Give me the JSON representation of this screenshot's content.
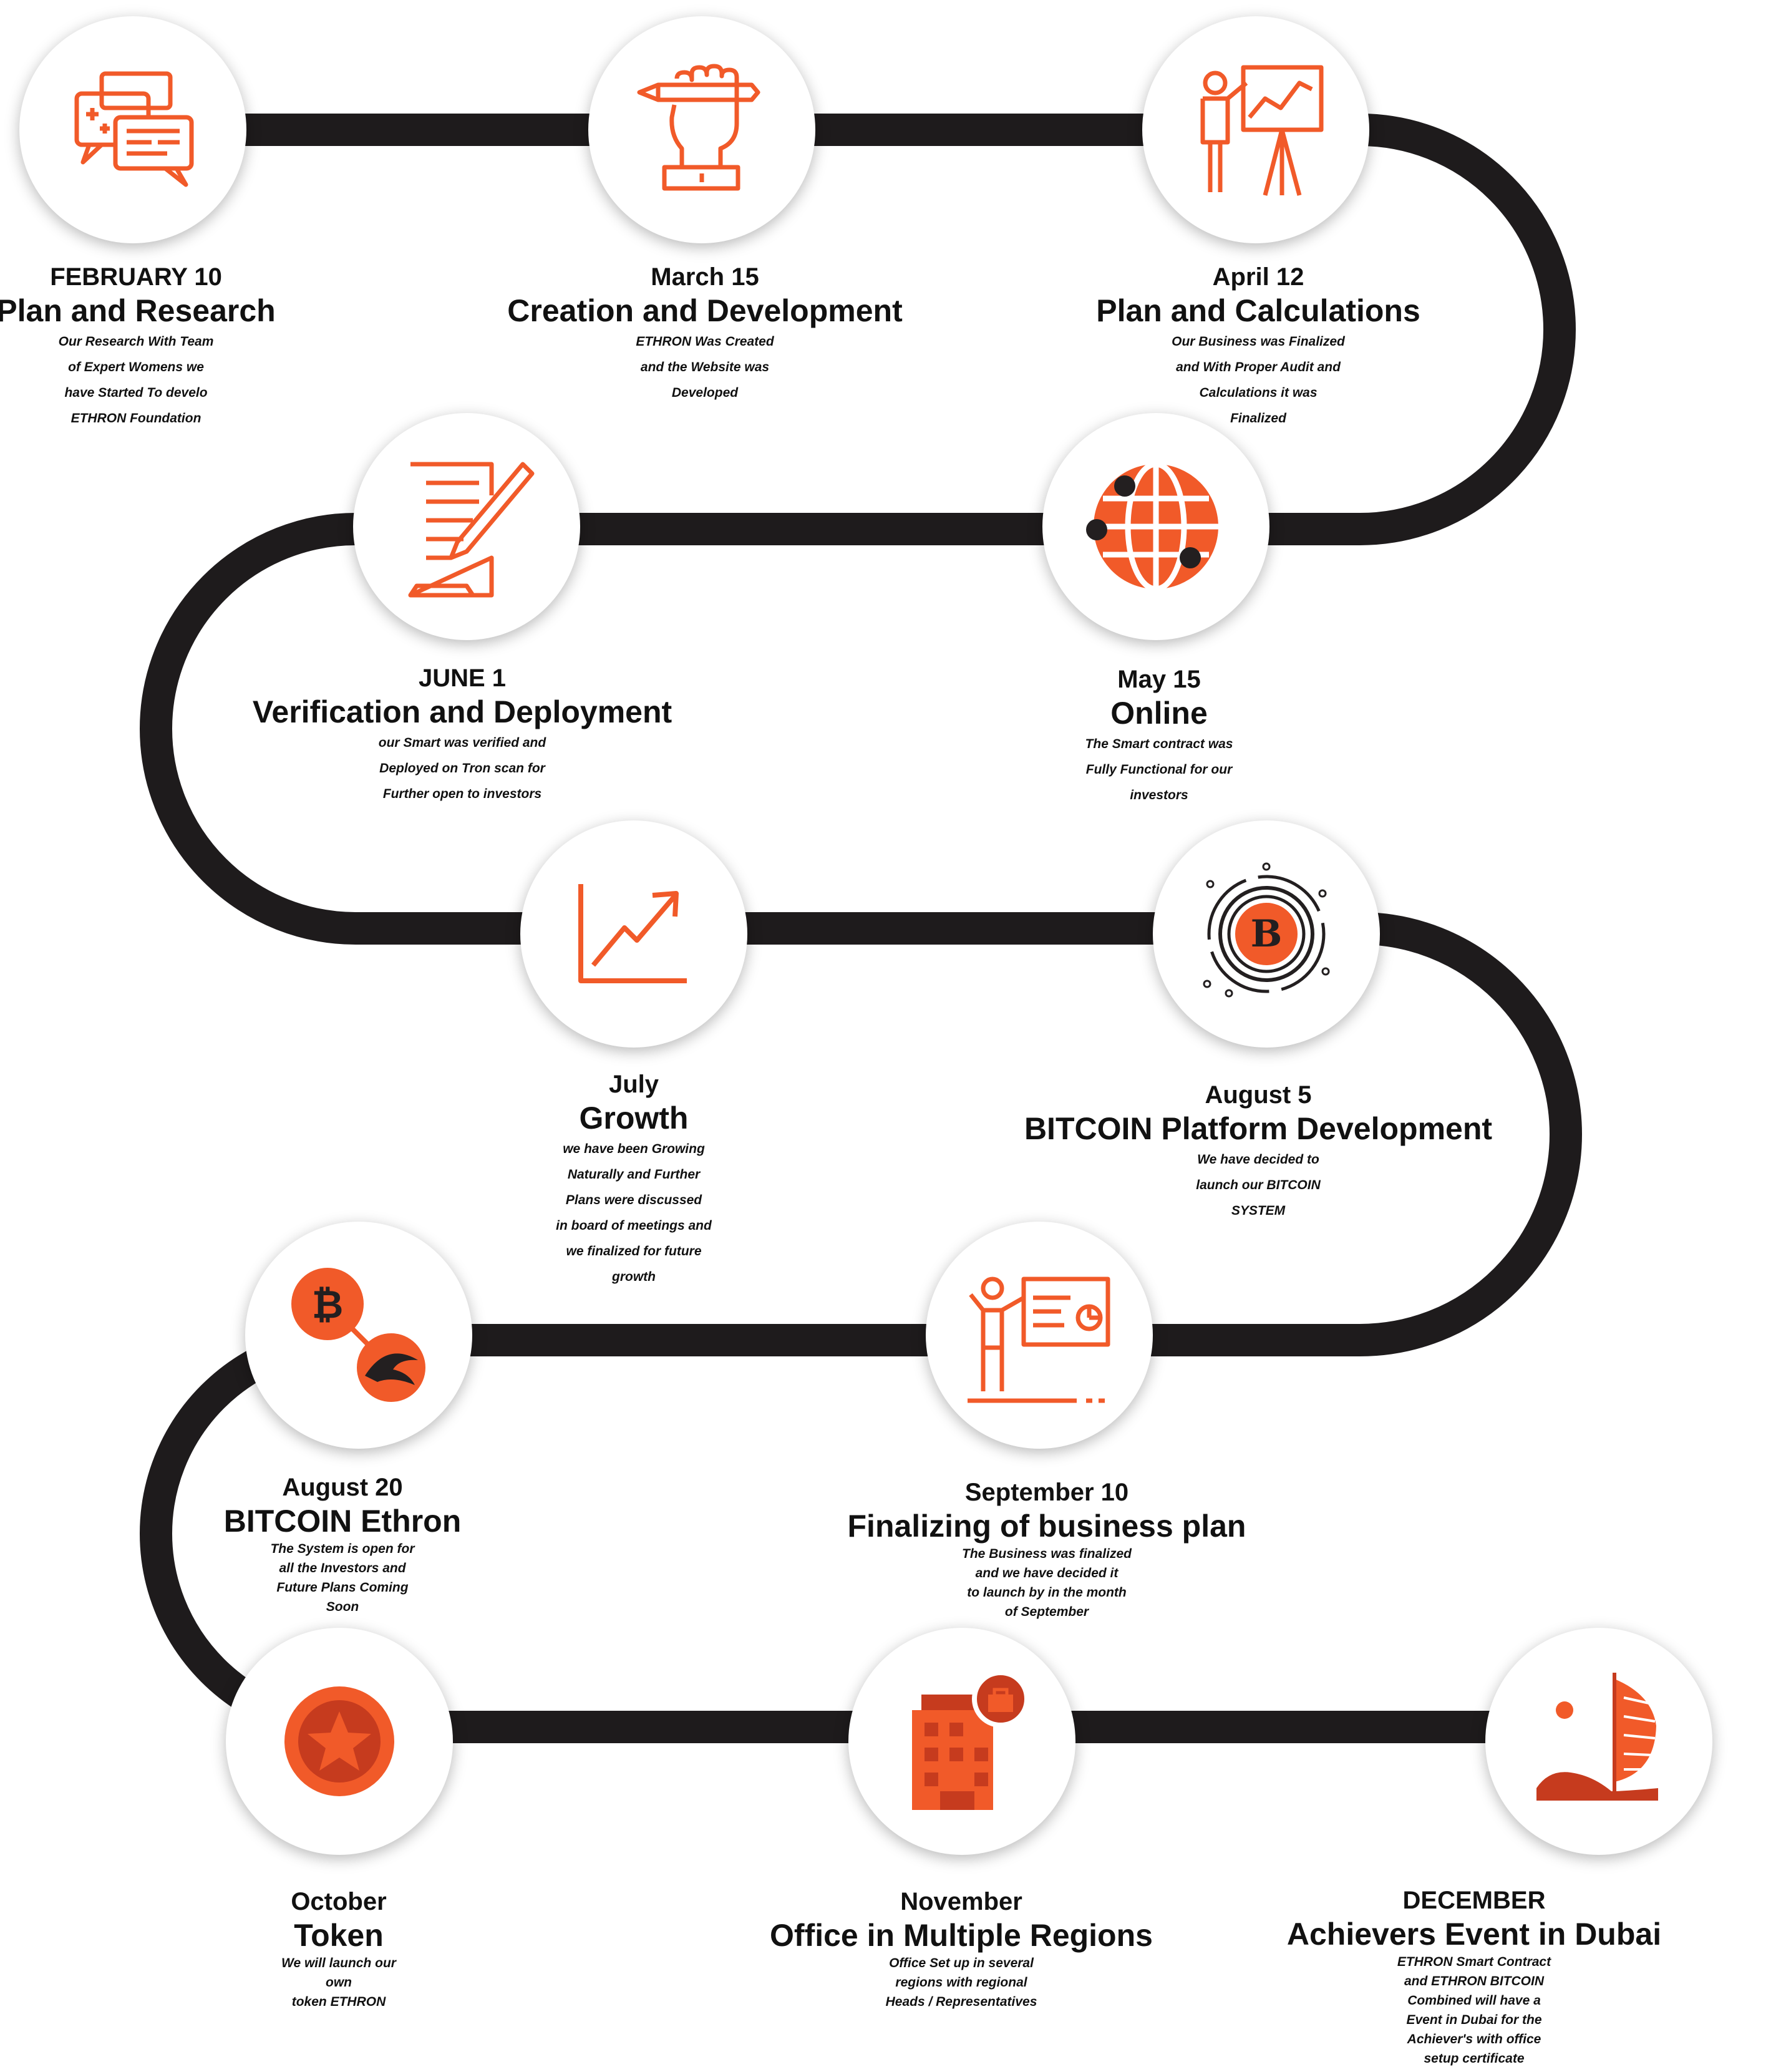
{
  "palette": {
    "accent": "#F15A29",
    "dark": "#231F20",
    "road": "#1E1B1C",
    "white": "#FFFFFF"
  },
  "milestones": [
    {
      "date": "FEBRUARY 10",
      "title": "Plan and Research",
      "icon": "chat-bubbles-icon",
      "desc": [
        "Our Research With Team",
        "of Expert Womens we",
        "have Started To develo",
        "ETHRON Foundation"
      ]
    },
    {
      "date": "March 15",
      "title": "Creation and Development",
      "icon": "hand-holding-pencil-icon",
      "desc": [
        "ETHRON Was Created",
        "and the Website was",
        "Developed"
      ]
    },
    {
      "date": "April 12",
      "title": "Plan and Calculations",
      "icon": "presentation-easel-icon",
      "desc": [
        "Our Business was Finalized",
        "and With Proper Audit and",
        "Calculations it was",
        "Finalized"
      ]
    },
    {
      "date": "JUNE 1",
      "title": "Verification and Deployment",
      "icon": "document-pencil-icon",
      "desc": [
        "our Smart was verified and",
        "Deployed on Tron scan for",
        "Further open to investors"
      ]
    },
    {
      "date": "May 15",
      "title": "Online",
      "icon": "globe-network-icon",
      "desc": [
        "The Smart contract was",
        "Fully Functional for our",
        "investors"
      ]
    },
    {
      "date": "July",
      "title": "Growth",
      "icon": "growth-chart-icon",
      "desc": [
        "we have been Growing",
        "Naturally and Further",
        "Plans were discussed",
        "in board of meetings and",
        "we finalized for future",
        "growth"
      ]
    },
    {
      "date": "August 5",
      "title": "BITCOIN Platform Development",
      "icon": "bitcoin-orbit-icon",
      "desc": [
        "We have decided to",
        "launch our BITCOIN",
        "SYSTEM"
      ]
    },
    {
      "date": "August 20",
      "title": "BITCOIN Ethron",
      "icon": "bitcoin-ethron-link-icon",
      "desc": [
        "The System is open for",
        "all the Investors and",
        "Future Plans Coming",
        "Soon"
      ]
    },
    {
      "date": "September 10",
      "title": "Finalizing of business plan",
      "icon": "presenter-board-icon",
      "desc": [
        "The Business was finalized",
        "and we have decided it",
        "to launch by in the month",
        "of September"
      ]
    },
    {
      "date": "October",
      "title": "Token",
      "icon": "star-token-icon",
      "desc": [
        "We will launch our",
        "own",
        "token ETHRON"
      ]
    },
    {
      "date": "November",
      "title": "Office in Multiple Regions",
      "icon": "office-building-icon",
      "desc": [
        "Office Set up in several",
        "regions with regional",
        "Heads / Representatives"
      ]
    },
    {
      "date": "DECEMBER",
      "title": "Achievers Event in Dubai",
      "icon": "dubai-burj-al-arab-icon",
      "desc": [
        "ETHRON Smart Contract",
        "and ETHRON BITCOIN",
        "Combined will have a",
        "Event in Dubai for the",
        "Achiever's with office",
        "setup certificate"
      ]
    }
  ]
}
